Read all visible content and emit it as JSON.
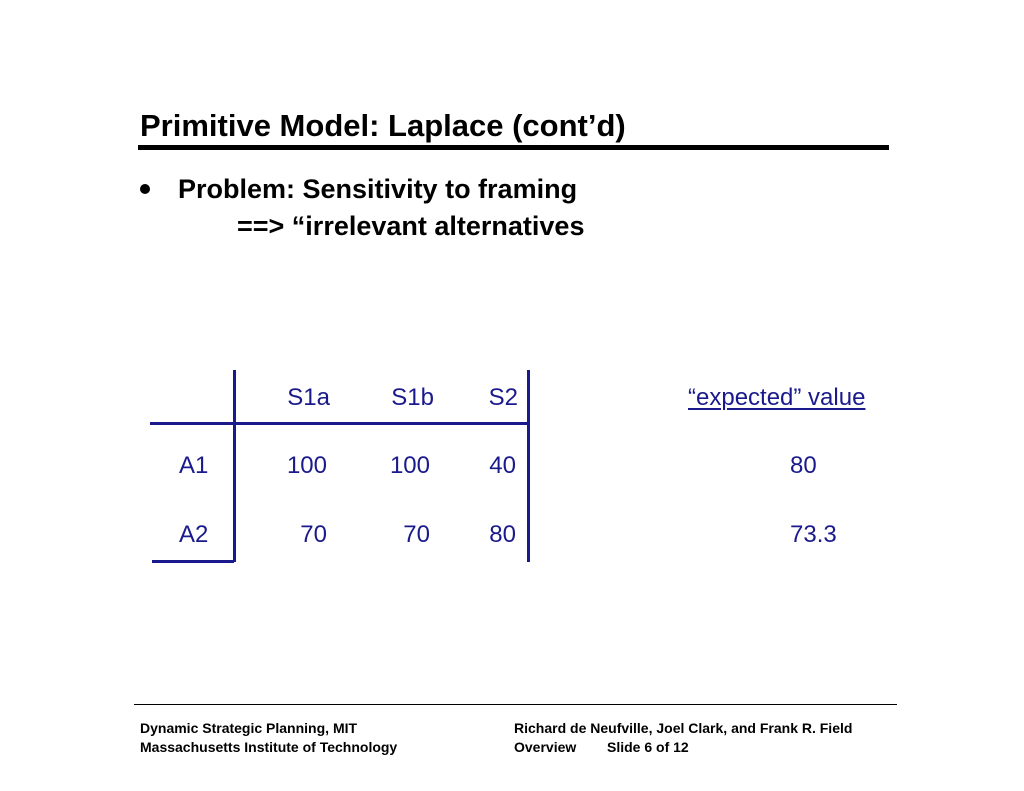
{
  "slide": {
    "title": "Primitive Model: Laplace (cont’d)",
    "bullet_line1": "Problem: Sensitivity to framing",
    "bullet_line2": "==> “irrelevant alternatives"
  },
  "table": {
    "columns": [
      "S1a",
      "S1b",
      "S2"
    ],
    "rows": [
      {
        "label": "A1",
        "values": [
          "100",
          "100",
          "40"
        ],
        "expected": "80"
      },
      {
        "label": "A2",
        "values": [
          "70",
          "70",
          "80"
        ],
        "expected": "73.3"
      }
    ],
    "expected_header": "“expected” value",
    "color": "#1a1a8c"
  },
  "footer": {
    "left_line1": "Dynamic Strategic Planning, MIT",
    "left_line2": "Massachusetts Institute of Technology",
    "right_line1": "Richard de Neufville, Joel Clark, and Frank  R. Field",
    "right_line2_a": "Overview",
    "right_line2_b": "Slide 6 of 12"
  }
}
